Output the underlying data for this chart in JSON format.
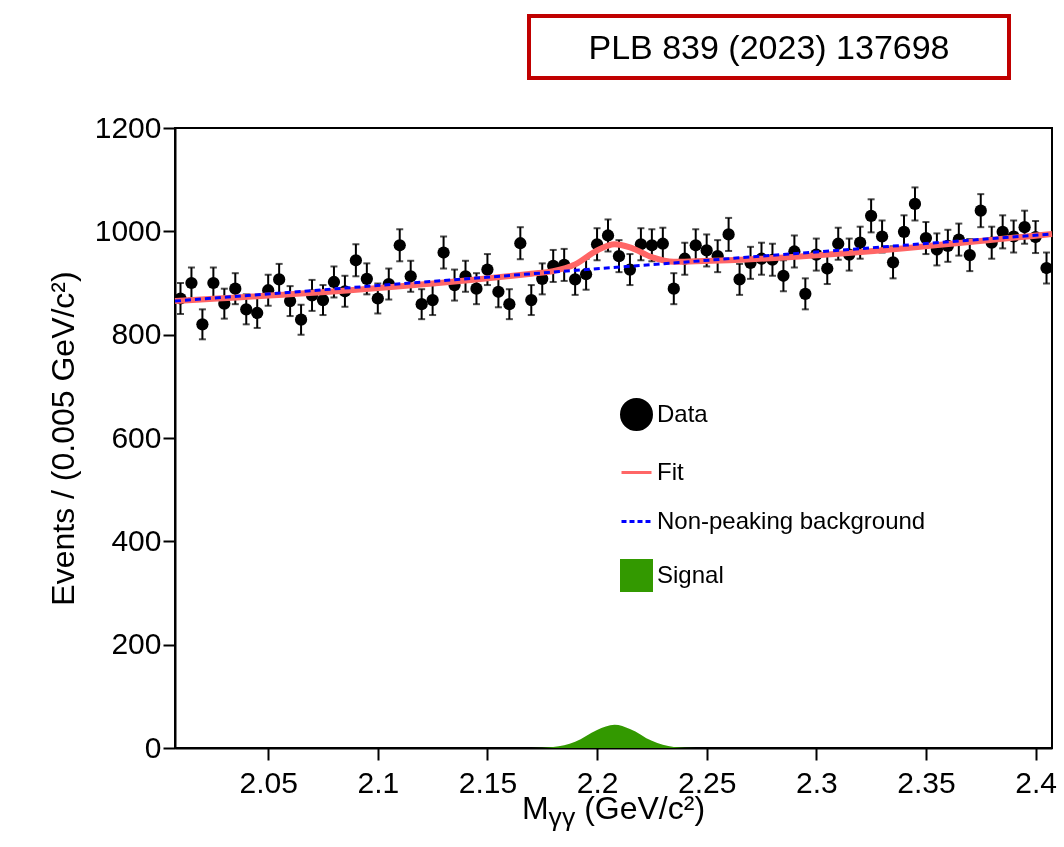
{
  "chart_data": {
    "type": "scatter",
    "annotations": [
      "PLB 839 (2023) 137698"
    ],
    "xlabel": "M$_{γγ}$ (GeV/c²)",
    "ylabel": "Events / (0.005 GeV/c²)",
    "xlim": [
      2.0075,
      2.4075
    ],
    "ylim": [
      0,
      1200
    ],
    "xticks": [
      2.05,
      2.1,
      2.15,
      2.2,
      2.25,
      2.3,
      2.35,
      2.4
    ],
    "yticks": [
      0,
      200,
      400,
      600,
      800,
      1000,
      1200
    ],
    "legend": "right",
    "series": [
      {
        "name": "Data",
        "marker": "circle",
        "color": "#000000",
        "x": [
          2.01,
          2.015,
          2.02,
          2.025,
          2.03,
          2.035,
          2.04,
          2.045,
          2.05,
          2.055,
          2.06,
          2.065,
          2.07,
          2.075,
          2.08,
          2.085,
          2.09,
          2.095,
          2.1,
          2.105,
          2.11,
          2.115,
          2.12,
          2.125,
          2.13,
          2.135,
          2.14,
          2.145,
          2.15,
          2.155,
          2.16,
          2.165,
          2.17,
          2.175,
          2.18,
          2.185,
          2.19,
          2.195,
          2.2,
          2.205,
          2.21,
          2.215,
          2.22,
          2.225,
          2.23,
          2.235,
          2.24,
          2.245,
          2.25,
          2.255,
          2.26,
          2.265,
          2.27,
          2.275,
          2.28,
          2.285,
          2.29,
          2.295,
          2.3,
          2.305,
          2.31,
          2.315,
          2.32,
          2.325,
          2.33,
          2.335,
          2.34,
          2.345,
          2.35,
          2.355,
          2.36,
          2.365,
          2.37,
          2.375,
          2.38,
          2.385,
          2.39,
          2.395,
          2.4,
          2.405
        ],
        "values": [
          870,
          900,
          820,
          900,
          860,
          889,
          849,
          842,
          886,
          907,
          865,
          829,
          876,
          867,
          902,
          884,
          944,
          908,
          870,
          898,
          973,
          913,
          859,
          867,
          959,
          896,
          913,
          889,
          926,
          883,
          859,
          977,
          867,
          908,
          933,
          935,
          907,
          917,
          975,
          992,
          952,
          926,
          975,
          973,
          976,
          889,
          947,
          973,
          963,
          952,
          994,
          907,
          939,
          947,
          945,
          914,
          961,
          879,
          955,
          928,
          976,
          955,
          978,
          1030,
          990,
          940,
          999,
          1053,
          987,
          965,
          972,
          984,
          954,
          1040,
          978,
          999,
          990,
          1008,
          989,
          929
        ],
        "errors": [
          30,
          30,
          29,
          30,
          29,
          30,
          29,
          29,
          30,
          30,
          29,
          29,
          30,
          29,
          30,
          30,
          31,
          30,
          29,
          30,
          31,
          30,
          29,
          29,
          31,
          30,
          30,
          30,
          30,
          30,
          29,
          31,
          29,
          30,
          31,
          31,
          30,
          30,
          31,
          31,
          31,
          30,
          31,
          31,
          31,
          30,
          31,
          31,
          31,
          31,
          32,
          30,
          31,
          31,
          31,
          30,
          31,
          30,
          31,
          30,
          31,
          31,
          31,
          32,
          31,
          31,
          32,
          32,
          31,
          31,
          31,
          31,
          31,
          32,
          31,
          32,
          31,
          32,
          31,
          30
        ]
      },
      {
        "name": "Fit",
        "type": "line",
        "marker": "none",
        "color": "#ff6666",
        "line_style": "solid",
        "x": [
          2.0075,
          2.17,
          2.18,
          2.19,
          2.2,
          2.208,
          2.215,
          2.225,
          2.235,
          2.245,
          2.4075
        ],
        "values": [
          865,
          918,
          923,
          936,
          963,
          975,
          969,
          950,
          941,
          942,
          995
        ]
      },
      {
        "name": "Non-peaking background",
        "type": "line",
        "marker": "none",
        "color": "#0000ff",
        "line_style": "dashed",
        "x": [
          2.0075,
          2.4075
        ],
        "values": [
          865,
          995
        ]
      },
      {
        "name": "Signal",
        "type": "area",
        "marker": "none",
        "color": "#339900",
        "x": [
          2.0075,
          2.17,
          2.18,
          2.19,
          2.2,
          2.208,
          2.215,
          2.225,
          2.235,
          2.245,
          2.4075
        ],
        "values": [
          0,
          0,
          2,
          12,
          35,
          45,
          37,
          14,
          2,
          0,
          0
        ]
      }
    ]
  }
}
